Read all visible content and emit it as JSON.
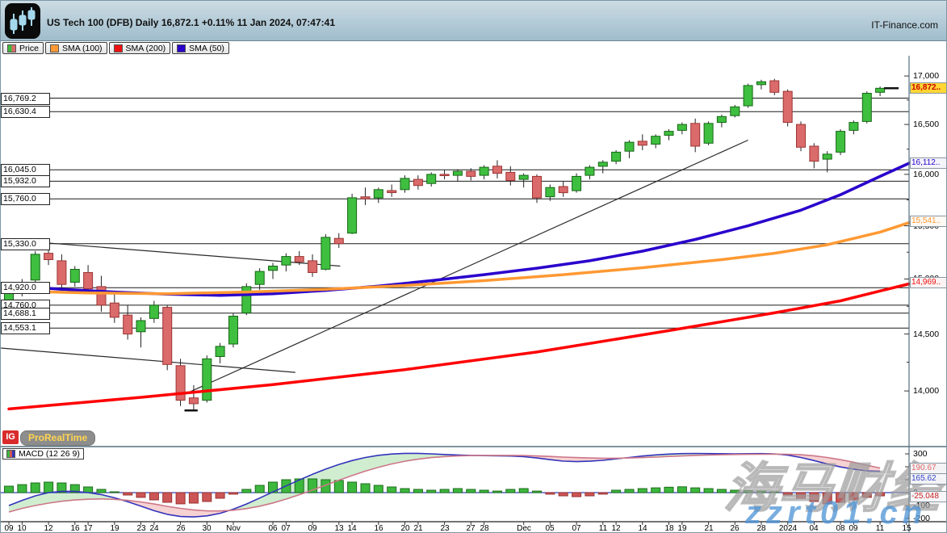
{
  "header": {
    "title": "US Tech 100 (DFB) Daily 16,872.1 +0.11% 11 Jan 2024, 07:47:41",
    "brand": "IT-Finance.com",
    "instrument": "US Tech 100 (DFB)",
    "timeframe": "Daily",
    "last_price": "16,872.1",
    "change_pct": "+0.11%",
    "timestamp": "11 Jan 2024, 07:47:41"
  },
  "legend": {
    "items": [
      {
        "label": "Price",
        "swatch": "candles"
      },
      {
        "label": "SMA (100)",
        "swatch": "#ff9933"
      },
      {
        "label": "SMA (200)",
        "swatch": "#ee1111"
      },
      {
        "label": "SMA (50)",
        "swatch": "#2a00cc"
      }
    ]
  },
  "badges": {
    "ig": "IG",
    "prorealtime": "ProRealTime"
  },
  "indicator_tab": {
    "label": "MACD (12 26 9)"
  },
  "watermarks": {
    "cn": "海马财经",
    "site": "zzrt01.cn"
  },
  "colors": {
    "up": "#3fbf3f",
    "up_stroke": "#176617",
    "down": "#db6a6a",
    "down_stroke": "#9c3535",
    "sma50": "#2a00cc",
    "sma100": "#ff9933",
    "sma200": "#ff0000",
    "macd_line": "#3333bb",
    "signal_line": "#cc7788",
    "hist_up": "#3cb83c",
    "hist_down": "#cc5555",
    "shade_up": "rgba(150,215,150,0.45)",
    "shade_down": "rgba(238,165,165,0.5)",
    "last_tag_bg": "#ffd633",
    "last_tag_text": "#cc0000"
  },
  "chart_data": {
    "type": "candlestick",
    "title": "US Tech 100 (DFB) Daily",
    "dates": [
      "10-09",
      "10-10",
      "10-11",
      "10-12",
      "10-13",
      "10-16",
      "10-17",
      "10-18",
      "10-19",
      "10-20",
      "10-23",
      "10-24",
      "10-25",
      "10-26",
      "10-27",
      "10-30",
      "10-31",
      "11-01",
      "11-02",
      "11-03",
      "11-06",
      "11-07",
      "11-08",
      "11-09",
      "11-10",
      "11-13",
      "11-14",
      "11-15",
      "11-16",
      "11-17",
      "11-20",
      "11-21",
      "11-22",
      "11-23",
      "11-24",
      "11-27",
      "11-28",
      "11-29",
      "11-30",
      "12-01",
      "12-04",
      "12-05",
      "12-06",
      "12-07",
      "12-08",
      "12-11",
      "12-12",
      "12-13",
      "12-14",
      "12-15",
      "12-18",
      "12-19",
      "12-20",
      "12-21",
      "12-22",
      "12-26",
      "12-27",
      "12-28",
      "12-29",
      "01-02",
      "01-03",
      "01-04",
      "01-05",
      "01-08",
      "01-09",
      "01-10",
      "01-11"
    ],
    "ohlc": [
      [
        14780,
        14930,
        14720,
        14890
      ],
      [
        14880,
        15000,
        14840,
        14970
      ],
      [
        14990,
        15260,
        14960,
        15230
      ],
      [
        15240,
        15330,
        15130,
        15180
      ],
      [
        15170,
        15230,
        14900,
        14950
      ],
      [
        14970,
        15120,
        14930,
        15090
      ],
      [
        15060,
        15130,
        14870,
        14910
      ],
      [
        14930,
        15030,
        14700,
        14760
      ],
      [
        14780,
        14890,
        14600,
        14650
      ],
      [
        14670,
        14760,
        14450,
        14500
      ],
      [
        14520,
        14650,
        14380,
        14620
      ],
      [
        14640,
        14800,
        14600,
        14760
      ],
      [
        14740,
        14760,
        14180,
        14230
      ],
      [
        14220,
        14280,
        13870,
        13920
      ],
      [
        13940,
        14050,
        13830,
        13890
      ],
      [
        13920,
        14310,
        13900,
        14280
      ],
      [
        14300,
        14420,
        14240,
        14390
      ],
      [
        14410,
        14690,
        14380,
        14660
      ],
      [
        14690,
        14960,
        14670,
        14930
      ],
      [
        14950,
        15100,
        14900,
        15070
      ],
      [
        15080,
        15150,
        15000,
        15120
      ],
      [
        15130,
        15240,
        15070,
        15210
      ],
      [
        15210,
        15260,
        15130,
        15160
      ],
      [
        15170,
        15230,
        15020,
        15060
      ],
      [
        15090,
        15420,
        15080,
        15390
      ],
      [
        15380,
        15430,
        15290,
        15330
      ],
      [
        15430,
        15810,
        15420,
        15770
      ],
      [
        15780,
        15870,
        15700,
        15760
      ],
      [
        15770,
        15870,
        15720,
        15850
      ],
      [
        15840,
        15900,
        15780,
        15820
      ],
      [
        15850,
        15990,
        15820,
        15960
      ],
      [
        15950,
        15990,
        15850,
        15890
      ],
      [
        15910,
        16020,
        15880,
        16000
      ],
      [
        16000,
        16040,
        15950,
        15990
      ],
      [
        15990,
        16050,
        15930,
        16030
      ],
      [
        16030,
        16060,
        15940,
        15980
      ],
      [
        15990,
        16090,
        15950,
        16070
      ],
      [
        16080,
        16140,
        15960,
        16010
      ],
      [
        16020,
        16080,
        15890,
        15940
      ],
      [
        15950,
        16010,
        15870,
        15990
      ],
      [
        15980,
        16000,
        15720,
        15770
      ],
      [
        15780,
        15900,
        15740,
        15870
      ],
      [
        15880,
        15930,
        15780,
        15820
      ],
      [
        15840,
        16010,
        15820,
        15980
      ],
      [
        15990,
        16090,
        15950,
        16070
      ],
      [
        16080,
        16140,
        16010,
        16120
      ],
      [
        16130,
        16240,
        16100,
        16220
      ],
      [
        16230,
        16340,
        16160,
        16320
      ],
      [
        16330,
        16400,
        16240,
        16290
      ],
      [
        16300,
        16400,
        16260,
        16380
      ],
      [
        16390,
        16450,
        16340,
        16430
      ],
      [
        16440,
        16520,
        16400,
        16500
      ],
      [
        16510,
        16560,
        16220,
        16280
      ],
      [
        16310,
        16530,
        16290,
        16510
      ],
      [
        16520,
        16600,
        16470,
        16580
      ],
      [
        16590,
        16700,
        16570,
        16680
      ],
      [
        16690,
        16920,
        16670,
        16900
      ],
      [
        16910,
        16960,
        16860,
        16940
      ],
      [
        16950,
        16970,
        16800,
        16830
      ],
      [
        16840,
        16860,
        16480,
        16520
      ],
      [
        16500,
        16530,
        16230,
        16270
      ],
      [
        16280,
        16310,
        16060,
        16130
      ],
      [
        16150,
        16230,
        16020,
        16200
      ],
      [
        16220,
        16450,
        16190,
        16430
      ],
      [
        16440,
        16540,
        16400,
        16520
      ],
      [
        16530,
        16840,
        16510,
        16820
      ],
      [
        16830,
        16890,
        16790,
        16872.1
      ]
    ],
    "x_labels": [
      {
        "t": "09",
        "i": 0
      },
      {
        "t": "10",
        "i": 1
      },
      {
        "t": "12",
        "i": 3
      },
      {
        "t": "16",
        "i": 5
      },
      {
        "t": "17",
        "i": 6
      },
      {
        "t": "19",
        "i": 8
      },
      {
        "t": "23",
        "i": 10
      },
      {
        "t": "24",
        "i": 11
      },
      {
        "t": "26",
        "i": 13
      },
      {
        "t": "30",
        "i": 15
      },
      {
        "t": "Nov",
        "i": 17
      },
      {
        "t": "06",
        "i": 20
      },
      {
        "t": "07",
        "i": 21
      },
      {
        "t": "09",
        "i": 23
      },
      {
        "t": "13",
        "i": 25
      },
      {
        "t": "14",
        "i": 26
      },
      {
        "t": "16",
        "i": 28
      },
      {
        "t": "20",
        "i": 30
      },
      {
        "t": "21",
        "i": 31
      },
      {
        "t": "23",
        "i": 33
      },
      {
        "t": "27",
        "i": 35
      },
      {
        "t": "28",
        "i": 36
      },
      {
        "t": "Dec",
        "i": 39
      },
      {
        "t": "05",
        "i": 41
      },
      {
        "t": "07",
        "i": 43
      },
      {
        "t": "11",
        "i": 45
      },
      {
        "t": "12",
        "i": 46
      },
      {
        "t": "14",
        "i": 48
      },
      {
        "t": "18",
        "i": 50
      },
      {
        "t": "19",
        "i": 51
      },
      {
        "t": "21",
        "i": 53
      },
      {
        "t": "26",
        "i": 55
      },
      {
        "t": "28",
        "i": 57
      },
      {
        "t": "2024",
        "i": 59
      },
      {
        "t": "04",
        "i": 61
      },
      {
        "t": "08",
        "i": 63
      },
      {
        "t": "09",
        "i": 64
      },
      {
        "t": "11",
        "i": 66
      },
      {
        "t": "15",
        "i": 68
      }
    ],
    "y_ticks": [
      {
        "label": "17,000",
        "value": 17000
      },
      {
        "label": "16,500",
        "value": 16500
      },
      {
        "label": "16,000",
        "value": 16000
      },
      {
        "label": "15,500",
        "value": 15500
      },
      {
        "label": "15,000",
        "value": 15000
      },
      {
        "label": "14,500",
        "value": 14500
      },
      {
        "label": "14,000",
        "value": 14000
      }
    ],
    "y_minor_step": 250,
    "y_range": [
      13800,
      17050
    ],
    "levels": [
      {
        "label": "16,769.2",
        "value": 16769.2
      },
      {
        "label": "16,630.4",
        "value": 16630.4
      },
      {
        "label": "16,045.0",
        "value": 16045.0
      },
      {
        "label": "15,932.0",
        "value": 15932.0
      },
      {
        "label": "15,760.0",
        "value": 15760.0
      },
      {
        "label": "15,330.0",
        "value": 15330.0
      },
      {
        "label": "14,920.0",
        "value": 14920.0
      },
      {
        "label": "14,760.0",
        "value": 14760.0
      },
      {
        "label": "14,688.1",
        "value": 14688.1
      },
      {
        "label": "14,553.1",
        "value": 14553.1
      }
    ],
    "price_tags": [
      {
        "text": "16,872..",
        "value": 16872.1,
        "color": "#cc0000",
        "bg": "#ffd633",
        "bold": true
      },
      {
        "text": "16,112..",
        "value": 16112,
        "color": "#2a00cc",
        "bg": "#f4f4fb",
        "bold": false
      },
      {
        "text": "15,541..",
        "value": 15541,
        "color": "#ff9933",
        "bg": "#fdf9f3",
        "bold": false
      },
      {
        "text": "14,969..",
        "value": 14969,
        "color": "#ee1111",
        "bg": "#fbf3f3",
        "bold": false
      }
    ],
    "trendlines": [
      {
        "x1": -0.6,
        "p1": 15372,
        "x2": 25.1,
        "p2": 15120
      },
      {
        "x1": -0.6,
        "p1": 14375,
        "x2": 21.7,
        "p2": 14161
      },
      {
        "x1": 13.8,
        "p1": 13996,
        "x2": 56.0,
        "p2": 16341
      }
    ],
    "markers": [
      {
        "x1": 13.3,
        "x2": 14.3,
        "p": 13833
      },
      {
        "x1": 66.3,
        "x2": 67.4,
        "p": 16872.1
      }
    ],
    "series": [
      {
        "name": "SMA (50)",
        "period": 50,
        "color": "#2a00cc",
        "end_value": 16112,
        "points": [
          [
            0,
            14940
          ],
          [
            4,
            14905
          ],
          [
            8,
            14880
          ],
          [
            12,
            14860
          ],
          [
            16,
            14850
          ],
          [
            20,
            14865
          ],
          [
            24,
            14895
          ],
          [
            28,
            14935
          ],
          [
            32,
            14985
          ],
          [
            36,
            15040
          ],
          [
            40,
            15100
          ],
          [
            44,
            15170
          ],
          [
            48,
            15260
          ],
          [
            52,
            15370
          ],
          [
            56,
            15500
          ],
          [
            60,
            15650
          ],
          [
            63,
            15800
          ],
          [
            66,
            15980
          ],
          [
            68.2,
            16110
          ]
        ]
      },
      {
        "name": "SMA (100)",
        "period": 100,
        "color": "#ff9933",
        "end_value": 15541,
        "points": [
          [
            0,
            14890
          ],
          [
            6,
            14872
          ],
          [
            12,
            14865
          ],
          [
            18,
            14880
          ],
          [
            24,
            14905
          ],
          [
            30,
            14940
          ],
          [
            36,
            14985
          ],
          [
            42,
            15040
          ],
          [
            48,
            15105
          ],
          [
            54,
            15180
          ],
          [
            58,
            15240
          ],
          [
            62,
            15320
          ],
          [
            66,
            15440
          ],
          [
            68.2,
            15530
          ]
        ]
      },
      {
        "name": "SMA (200)",
        "period": 200,
        "color": "#ff0000",
        "end_value": 14969,
        "points": [
          [
            0,
            13845
          ],
          [
            10,
            13945
          ],
          [
            20,
            14055
          ],
          [
            30,
            14185
          ],
          [
            40,
            14340
          ],
          [
            50,
            14530
          ],
          [
            58,
            14690
          ],
          [
            63,
            14800
          ],
          [
            66,
            14890
          ],
          [
            68.2,
            14955
          ]
        ]
      }
    ],
    "macd": {
      "params": "12 26 9",
      "y_ticks": [
        300,
        200,
        100,
        0,
        -100,
        -200
      ],
      "tags": [
        {
          "text": "190.67",
          "value": 190.67,
          "color": "#e06666"
        },
        {
          "text": "165.62",
          "value": 165.62,
          "color": "#3344cc"
        },
        {
          "text": "-25.048",
          "value": -25.048,
          "color": "#cc2222"
        }
      ],
      "hist": [
        50,
        62,
        75,
        81,
        75,
        62,
        44,
        25,
        6,
        -19,
        -37,
        -56,
        -75,
        -87,
        -81,
        -69,
        -44,
        -12,
        25,
        56,
        81,
        100,
        106,
        106,
        100,
        94,
        81,
        69,
        56,
        44,
        31,
        25,
        19,
        25,
        31,
        25,
        19,
        12,
        25,
        31,
        12,
        -12,
        -25,
        -31,
        -25,
        -12,
        19,
        25,
        31,
        37,
        42,
        45,
        37,
        31,
        25,
        19,
        15,
        12,
        6,
        -19,
        -44,
        -69,
        -87,
        -75,
        -56,
        -37,
        -25.048
      ],
      "macd": [
        -100,
        -60,
        -25,
        0,
        10,
        10,
        0,
        -15,
        -40,
        -70,
        -105,
        -140,
        -168,
        -185,
        -188,
        -180,
        -160,
        -128,
        -88,
        -42,
        5,
        52,
        98,
        142,
        182,
        218,
        248,
        272,
        289,
        299,
        304,
        304,
        300,
        295,
        291,
        288,
        286,
        285,
        283,
        278,
        268,
        255,
        244,
        240,
        243,
        250,
        261,
        272,
        283,
        292,
        298,
        302,
        303,
        302,
        301,
        300,
        301,
        302,
        300,
        290,
        272,
        248,
        222,
        199,
        181,
        169,
        165.62
      ],
      "signal": [
        -150,
        -122,
        -100,
        -81,
        -67,
        -57,
        -51,
        -49,
        -52,
        -60,
        -72,
        -88,
        -106,
        -122,
        -134,
        -141,
        -142,
        -136,
        -124,
        -105,
        -80,
        -50,
        -16,
        20,
        58,
        96,
        132,
        166,
        196,
        222,
        243,
        259,
        271,
        279,
        284,
        287,
        288,
        288,
        288,
        287,
        284,
        280,
        275,
        271,
        268,
        266,
        266,
        268,
        271,
        275,
        280,
        284,
        288,
        291,
        293,
        295,
        296,
        297,
        298,
        297,
        293,
        285,
        272,
        255,
        235,
        212,
        190.67
      ]
    }
  }
}
